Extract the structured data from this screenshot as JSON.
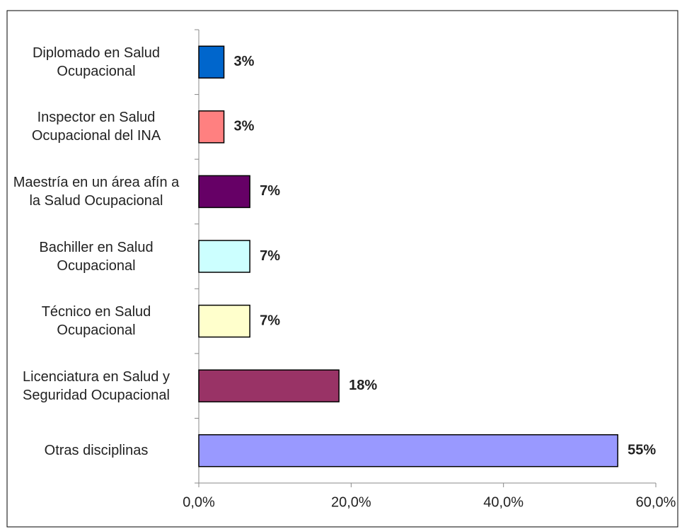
{
  "chart_data": {
    "type": "barh",
    "categories": [
      "Diplomado en Salud Ocupacional",
      "Inspector en Salud Ocupacional del INA",
      "Maestría en un área afín a la Salud Ocupacional",
      "Bachiller en Salud Ocupacional",
      "Técnico en Salud Ocupacional",
      "Licenciatura en Salud y Seguridad Ocupacional",
      "Otras disciplinas"
    ],
    "values": [
      3.3,
      3.3,
      6.7,
      6.7,
      6.7,
      18.4,
      55
    ],
    "value_labels": [
      "3%",
      "3%",
      "7%",
      "7%",
      "7%",
      "18%",
      "55%"
    ],
    "colors": [
      "#0066cc",
      "#ff8080",
      "#660066",
      "#ccffff",
      "#ffffcc",
      "#993366",
      "#9999ff"
    ],
    "xlim": [
      0,
      60
    ],
    "xticks": [
      {
        "value": 0,
        "label": "0,0%"
      },
      {
        "value": 20,
        "label": "20,0%"
      },
      {
        "value": 40,
        "label": "40,0%"
      },
      {
        "value": 60,
        "label": "60,0%"
      }
    ]
  }
}
